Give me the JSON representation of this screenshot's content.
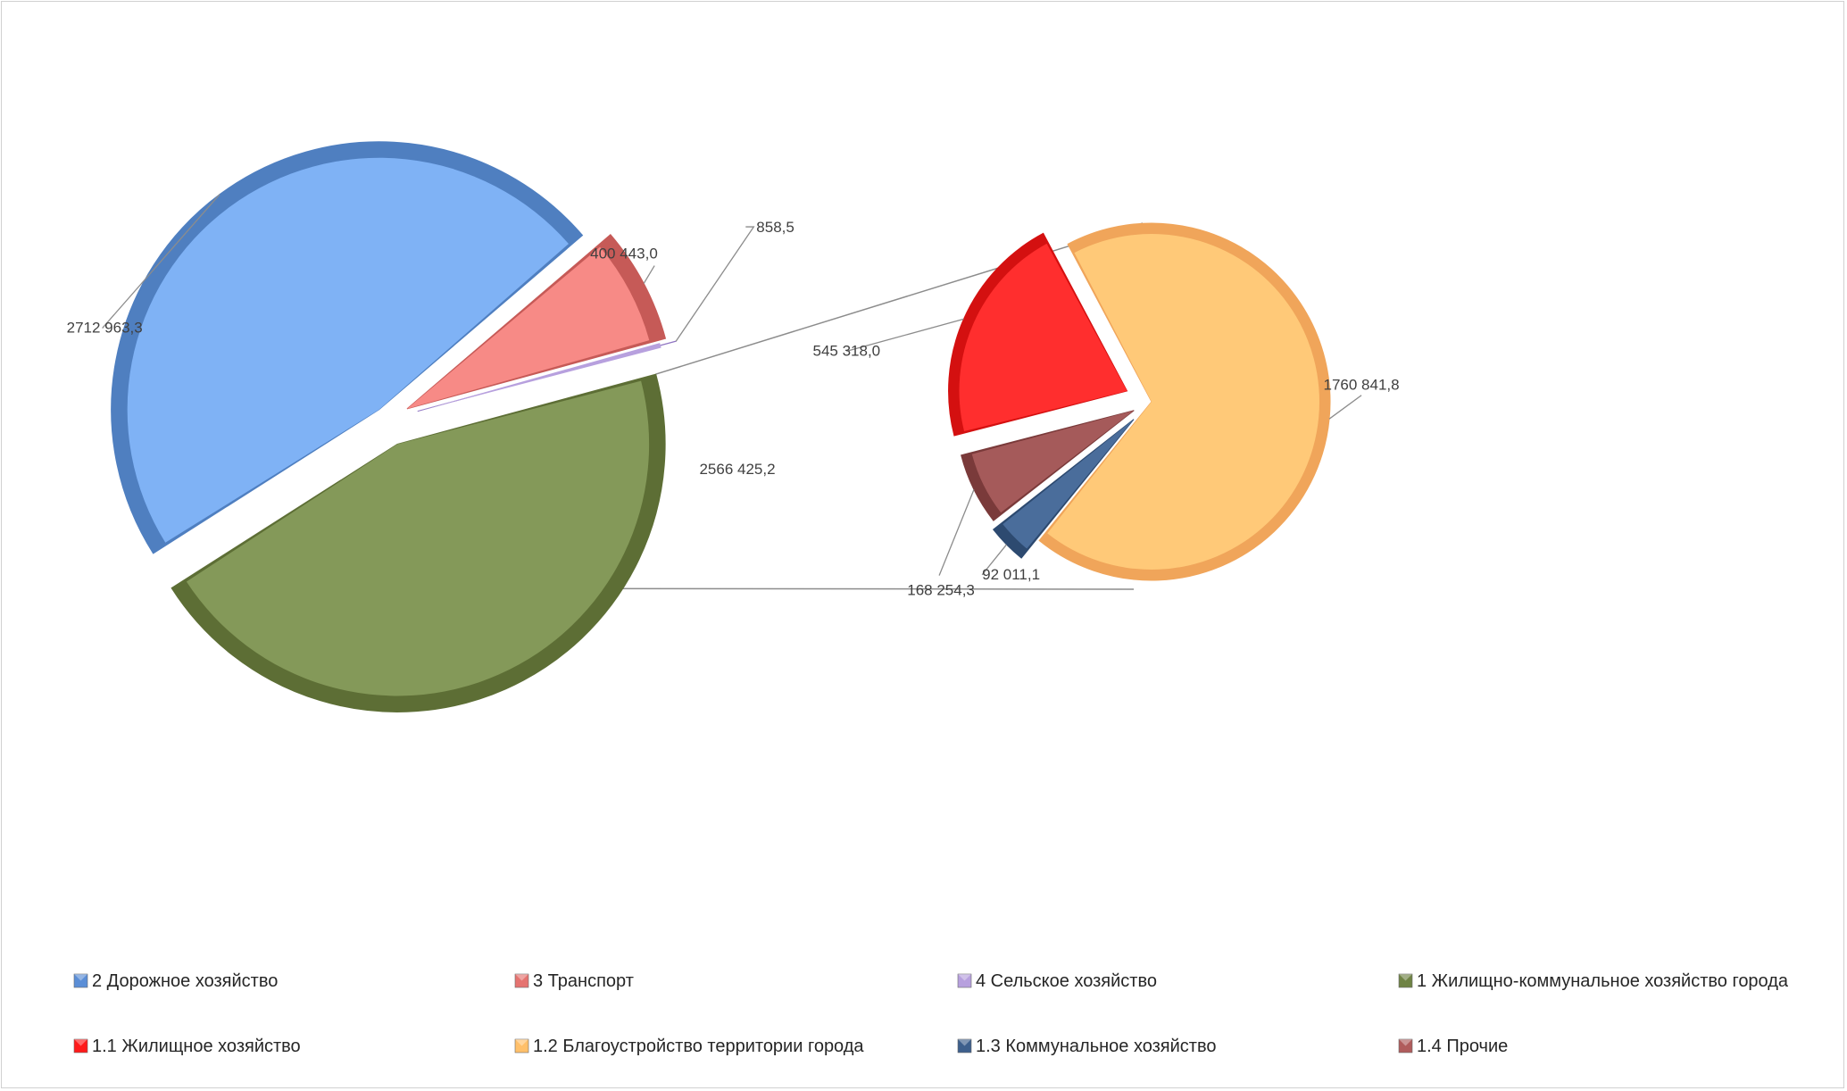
{
  "chart_data": {
    "type": "bar-of-pie",
    "main_pie": {
      "slices": [
        {
          "name": "2 Дорожное хозяйство",
          "value": 2712963.3,
          "label": "2712 963,3",
          "color": "#7fb2f5",
          "edge": "#4f7fc0"
        },
        {
          "name": "3 Транспорт",
          "value": 400443.0,
          "label": "400 443,0",
          "color": "#f78a86",
          "edge": "#c65a57"
        },
        {
          "name": "4 Сельское хозяйство",
          "value": 858.5,
          "label": "858,5",
          "color": "#b7a0de",
          "edge": "#8f74c2"
        },
        {
          "name": "1 Жилищно-коммунальное  хозяйство города",
          "value": 2566425.2,
          "label": "2566 425,2",
          "color": "#849959",
          "edge": "#5d6e35"
        }
      ]
    },
    "secondary_pie": {
      "parent": "1 Жилищно-коммунальное  хозяйство города",
      "slices": [
        {
          "name": "1.2 Благоустройство территории города",
          "value": 1760841.8,
          "label": "1760 841,8",
          "color": "#ffc978",
          "edge": "#f0a55a"
        },
        {
          "name": "1.3 Коммунальное хозяйство",
          "value": 92011.1,
          "label": "92 011,1",
          "color": "#4a6d9b",
          "edge": "#2d4a70"
        },
        {
          "name": "1.4 Прочие",
          "value": 168254.3,
          "label": "168 254,3",
          "color": "#a55a5a",
          "edge": "#7a3a3a"
        },
        {
          "name": "1.1 Жилищное хозяйство",
          "value": 545318.0,
          "label": "545 318,0",
          "color": "#ff2e2e",
          "edge": "#d41010"
        }
      ]
    },
    "legend": {
      "position": "bottom",
      "items": [
        {
          "label": "2 Дорожное хозяйство",
          "color": "#5b8ed6"
        },
        {
          "label": "3 Транспорт",
          "color": "#e57370"
        },
        {
          "label": "4 Сельское хозяйство",
          "color": "#b7a0de"
        },
        {
          "label": "1 Жилищно-коммунальное  хозяйство города",
          "color": "#6f8345"
        },
        {
          "label": "1.1 Жилищное хозяйство",
          "color": "#ff1a1a"
        },
        {
          "label": "1.2 Благоустройство территории города",
          "color": "#ffc06a"
        },
        {
          "label": "1.3 Коммунальное хозяйство",
          "color": "#3d5f8c"
        },
        {
          "label": "1.4 Прочие",
          "color": "#b05c5c"
        }
      ]
    }
  }
}
